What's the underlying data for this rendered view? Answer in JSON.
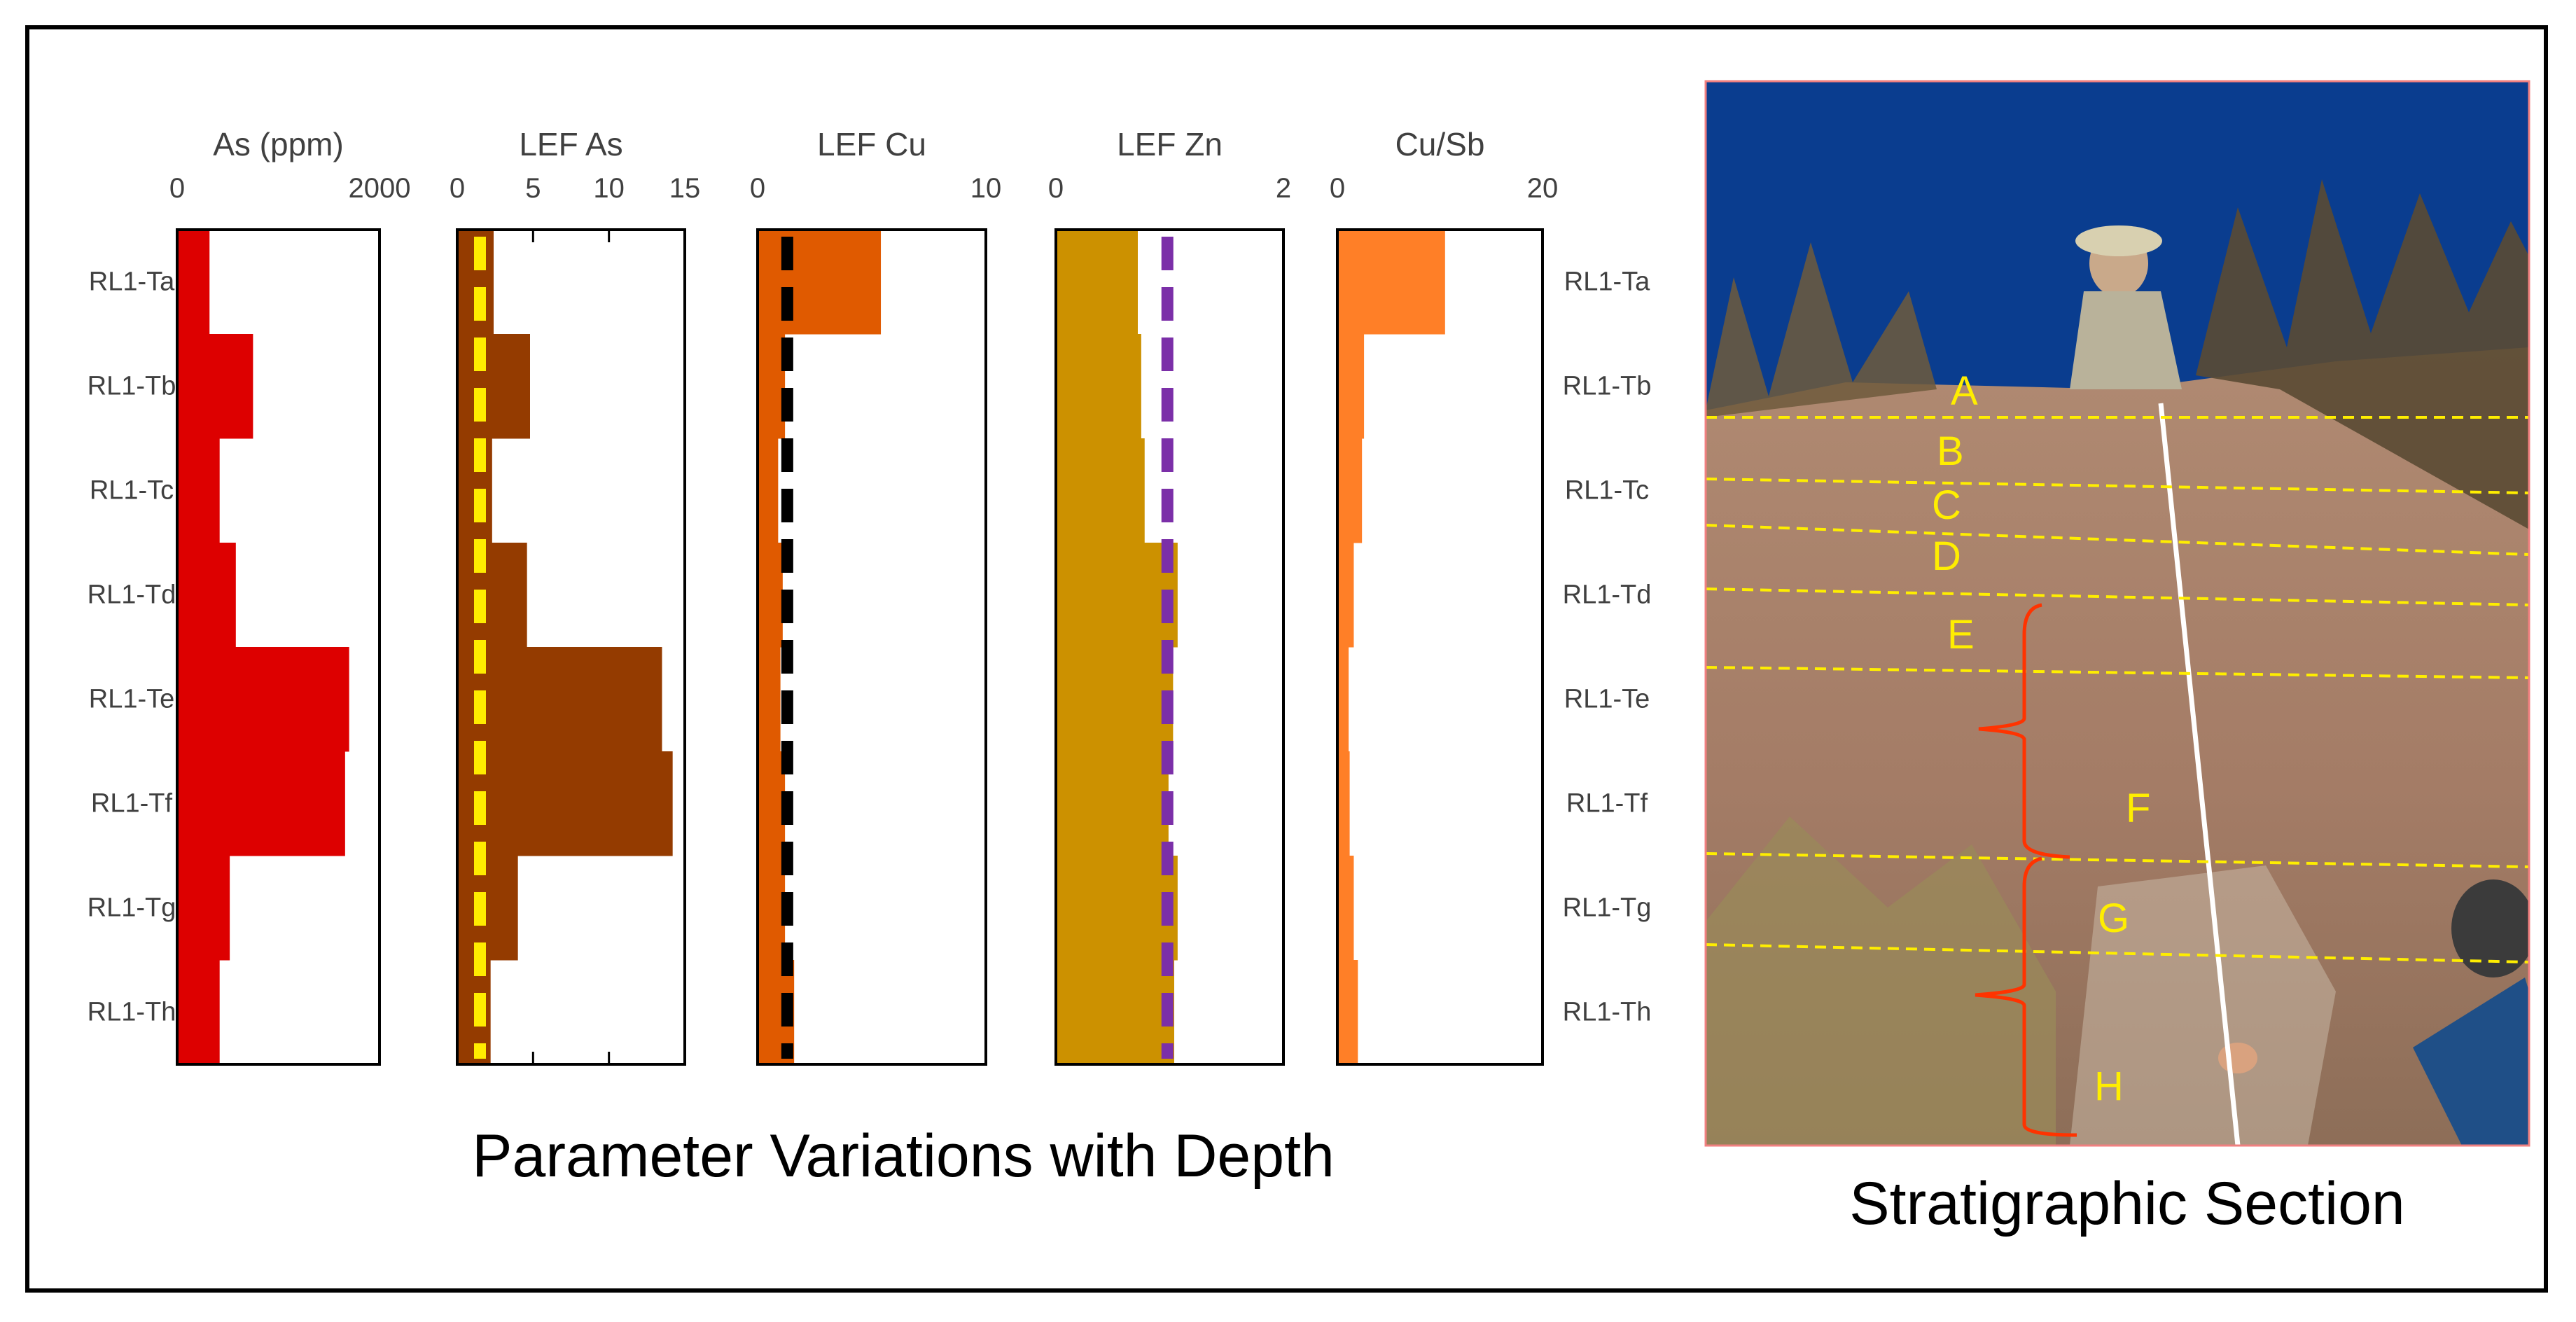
{
  "figure": {
    "left_caption": "Parameter Variations with Depth",
    "right_caption": "Stratigraphic Section"
  },
  "chart_data": {
    "type": "bar",
    "orientation": "horizontal step profiles",
    "samples": [
      "RL1-Ta",
      "RL1-Tb",
      "RL1-Tc",
      "RL1-Td",
      "RL1-Te",
      "RL1-Tf",
      "RL1-Tg",
      "RL1-Th"
    ],
    "panels": [
      {
        "id": "as",
        "title": "As (ppm)",
        "xlim": [
          0,
          2000
        ],
        "ticks": [
          0,
          2000
        ],
        "tick_labels": [
          "0",
          "2000"
        ],
        "color": "#dd0000",
        "values": [
          320,
          750,
          420,
          580,
          1700,
          1660,
          520,
          420
        ]
      },
      {
        "id": "lef-as",
        "title": "LEF As",
        "xlim": [
          0,
          15
        ],
        "ticks": [
          0,
          5,
          10,
          15
        ],
        "tick_labels": [
          "0",
          "5",
          "10",
          "15"
        ],
        "color": "#943b00",
        "values": [
          2.4,
          4.8,
          2.3,
          4.6,
          13.5,
          14.2,
          4.0,
          2.2
        ],
        "reference_line": {
          "value": 1.5,
          "color": "#ffec00"
        }
      },
      {
        "id": "lef-cu",
        "title": "LEF Cu",
        "xlim": [
          0,
          10
        ],
        "ticks": [
          0,
          10
        ],
        "tick_labels": [
          "0",
          "10"
        ],
        "color": "#e05a00",
        "values": [
          5.4,
          1.2,
          0.9,
          1.1,
          1.0,
          1.2,
          1.2,
          1.6
        ],
        "reference_line": {
          "value": 1.3,
          "color": "#000000"
        }
      },
      {
        "id": "lef-zn",
        "title": "LEF Zn",
        "xlim": [
          0,
          2
        ],
        "ticks": [
          0,
          2
        ],
        "tick_labels": [
          "0",
          "2"
        ],
        "color": "#cc9100",
        "values": [
          0.72,
          0.75,
          0.78,
          1.07,
          1.03,
          0.99,
          1.07,
          1.04
        ],
        "reference_line": {
          "value": 0.98,
          "color": "#7b2fa8"
        }
      },
      {
        "id": "cu-sb",
        "title": "Cu/Sb",
        "xlim": [
          0,
          20
        ],
        "ticks": [
          0,
          20
        ],
        "tick_labels": [
          "0",
          "20"
        ],
        "color": "#ff7f27",
        "values": [
          10.5,
          2.6,
          2.4,
          1.6,
          1.1,
          1.2,
          1.6,
          2.0
        ]
      }
    ]
  },
  "photo": {
    "layer_labels": [
      "A",
      "B",
      "C",
      "D",
      "E",
      "F",
      "G",
      "H"
    ],
    "label_color": "#ffee00",
    "bracket_color": "#ff3300",
    "sky_color": "#0a3d8f",
    "sediment_color": "#a88068"
  }
}
